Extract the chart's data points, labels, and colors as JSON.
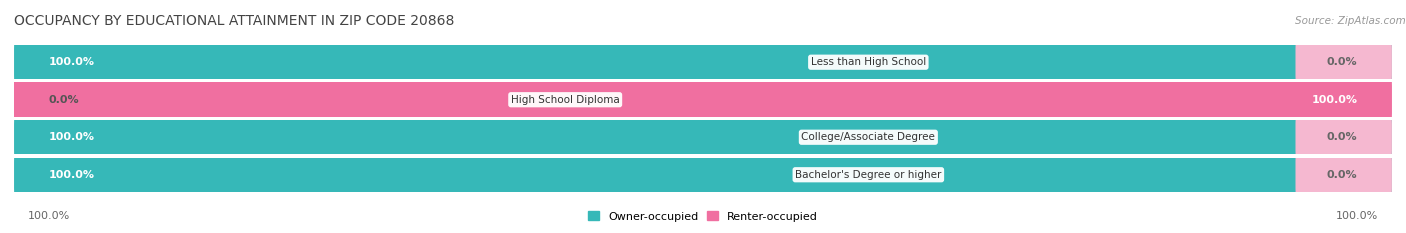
{
  "title": "OCCUPANCY BY EDUCATIONAL ATTAINMENT IN ZIP CODE 20868",
  "source": "Source: ZipAtlas.com",
  "categories": [
    "Less than High School",
    "High School Diploma",
    "College/Associate Degree",
    "Bachelor's Degree or higher"
  ],
  "owner_values": [
    100.0,
    0.0,
    100.0,
    100.0
  ],
  "renter_values": [
    0.0,
    100.0,
    0.0,
    0.0
  ],
  "owner_color": "#36b8b8",
  "renter_color": "#f06fa0",
  "owner_color_light": "#a0d8d8",
  "renter_color_light": "#f5b8d0",
  "bar_bg_color": "#e8e8e8",
  "background_color": "#ffffff",
  "title_fontsize": 10,
  "source_fontsize": 7.5,
  "label_fontsize": 7.5,
  "value_fontsize": 8,
  "legend_fontsize": 8
}
